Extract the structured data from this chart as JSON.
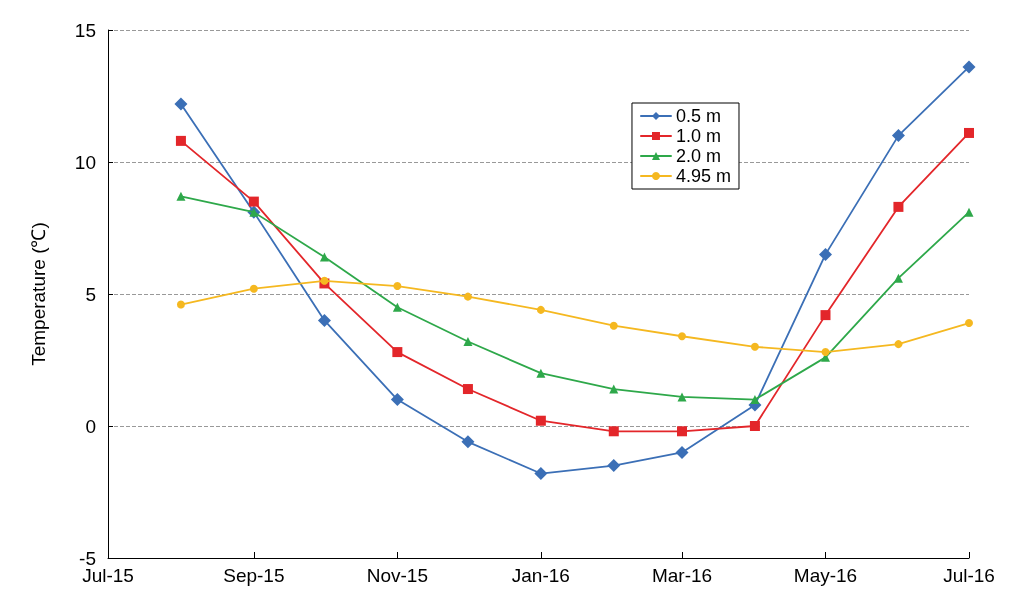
{
  "chart_data": {
    "type": "line",
    "ylabel": "Temperature (℃)",
    "x": [
      "2015-08",
      "2015-09",
      "2015-10",
      "2015-11",
      "2015-12",
      "2016-01",
      "2016-02",
      "2016-03",
      "2016-04",
      "2016-05",
      "2016-06",
      "2016-07"
    ],
    "series": [
      {
        "name": "0.5 m",
        "color": "#3b6fb6",
        "marker": "diamond",
        "values": [
          12.2,
          8.1,
          4.0,
          1.0,
          -0.6,
          -1.8,
          -1.5,
          -1.0,
          0.8,
          6.5,
          11.0,
          13.6
        ]
      },
      {
        "name": "1.0 m",
        "color": "#e3262a",
        "marker": "square",
        "values": [
          10.8,
          8.5,
          5.4,
          2.8,
          1.4,
          0.2,
          -0.2,
          -0.2,
          0.0,
          4.2,
          8.3,
          11.1
        ]
      },
      {
        "name": "2.0 m",
        "color": "#2ea84a",
        "marker": "triangle",
        "values": [
          8.7,
          8.1,
          6.4,
          4.5,
          3.2,
          2.0,
          1.4,
          1.1,
          1.0,
          2.6,
          5.6,
          8.1
        ]
      },
      {
        "name": "4.95 m",
        "color": "#f5b820",
        "marker": "circle",
        "values": [
          4.6,
          5.2,
          5.5,
          5.3,
          4.9,
          4.4,
          3.8,
          3.4,
          3.0,
          2.8,
          3.1,
          3.9
        ]
      }
    ],
    "xlim": [
      "2015-07",
      "2016-07"
    ],
    "xticks": [
      {
        "value": "2015-07",
        "label": "Jul-15"
      },
      {
        "value": "2015-09",
        "label": "Sep-15"
      },
      {
        "value": "2015-11",
        "label": "Nov-15"
      },
      {
        "value": "2016-01",
        "label": "Jan-16"
      },
      {
        "value": "2016-03",
        "label": "Mar-16"
      },
      {
        "value": "2016-05",
        "label": "May-16"
      },
      {
        "value": "2016-07",
        "label": "Jul-16"
      }
    ],
    "ylim": [
      -5,
      15
    ],
    "yticks": [
      -5,
      0,
      5,
      10,
      15
    ],
    "grid": "y",
    "legend": "top right"
  }
}
